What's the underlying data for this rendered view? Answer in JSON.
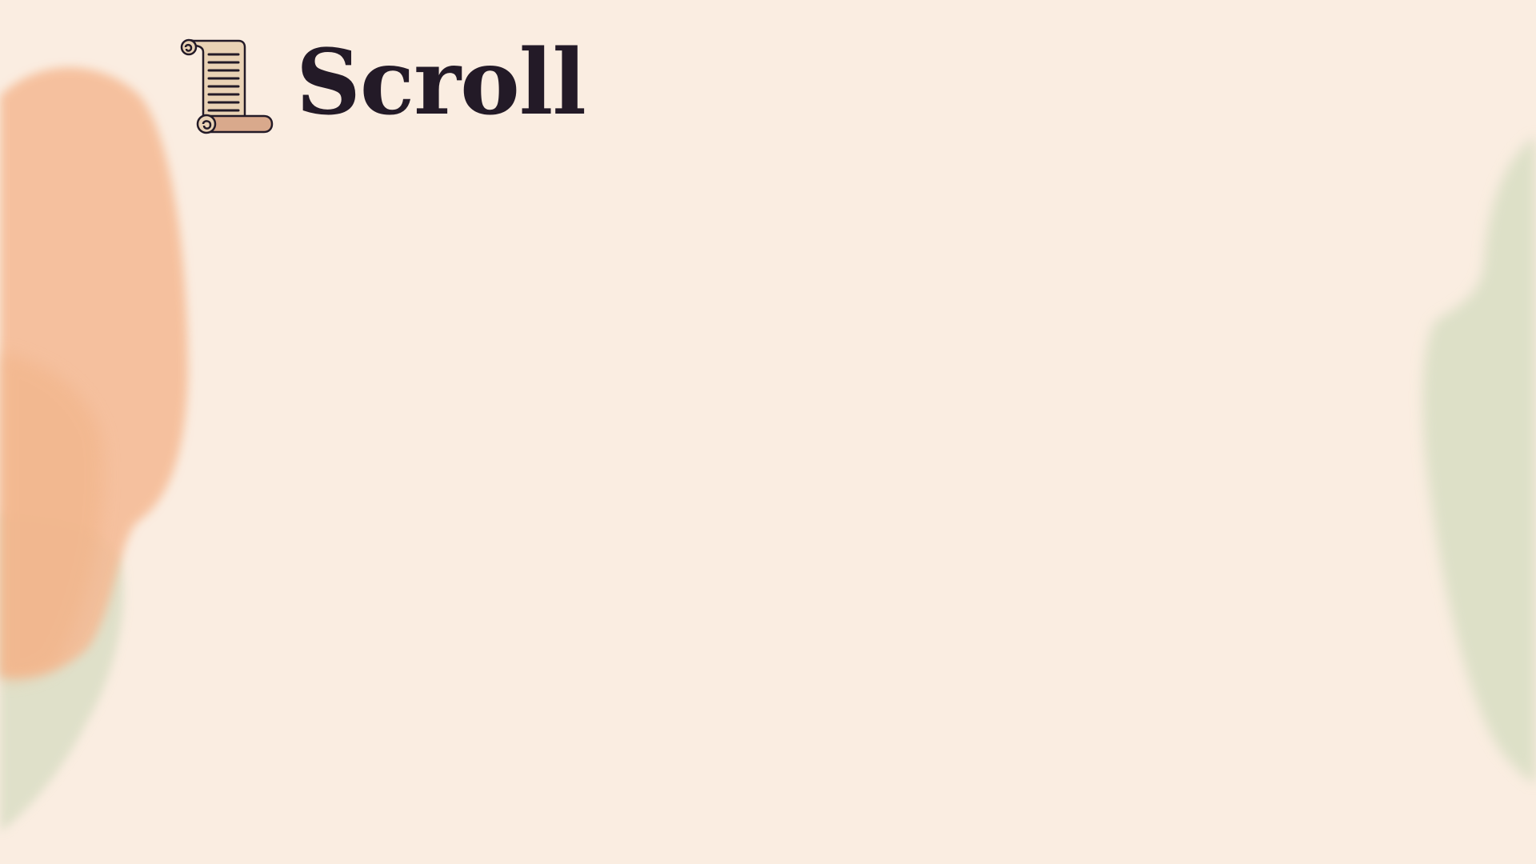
{
  "brand": {
    "name": "Scroll",
    "icon": "scroll-icon"
  },
  "colors": {
    "background": "#FAEDE1",
    "text": "#231A27",
    "peach_brush": "#F6BE98",
    "sage_brush": "#D8DEC3"
  }
}
